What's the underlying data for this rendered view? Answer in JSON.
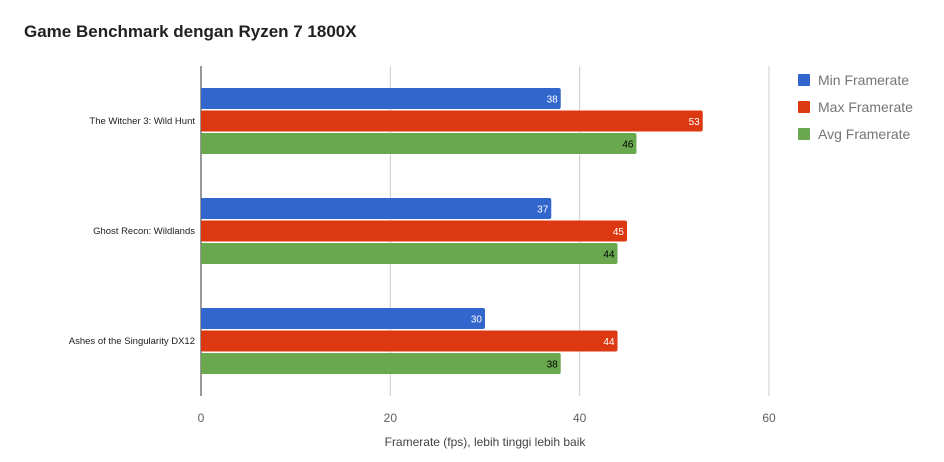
{
  "chart_data": {
    "type": "bar",
    "orientation": "horizontal",
    "title": "Game Benchmark dengan Ryzen 7 1800X",
    "xlabel": "Framerate (fps), lebih tinggi lebih baik",
    "ylabel": "",
    "categories": [
      "The Witcher 3: Wild Hunt",
      "Ghost Recon: Wildlands",
      "Ashes of the Singularity DX12"
    ],
    "series": [
      {
        "name": "Min Framerate",
        "color": "#3366cc",
        "label_color": "#ffffff",
        "values": [
          38,
          37,
          30
        ]
      },
      {
        "name": "Max Framerate",
        "color": "#dc3912",
        "label_color": "#ffffff",
        "values": [
          53,
          45,
          44
        ]
      },
      {
        "name": "Avg Framerate",
        "color": "#6aa84f",
        "label_color": "#000000",
        "values": [
          46,
          44,
          38
        ]
      }
    ],
    "xlim": [
      0,
      60
    ],
    "xticks": [
      "0",
      "20",
      "40",
      "60"
    ],
    "grid": true,
    "legend_position": "right"
  }
}
